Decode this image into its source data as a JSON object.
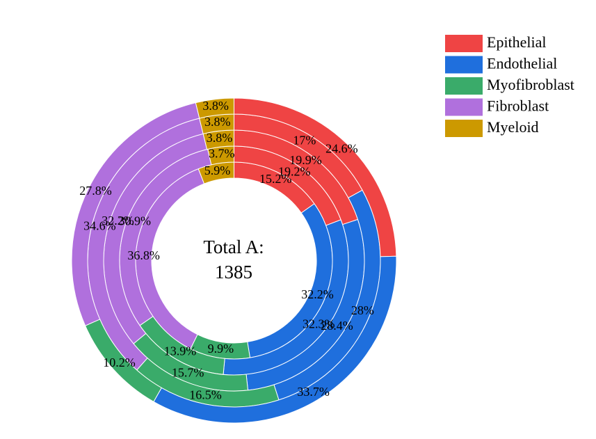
{
  "chart_data": {
    "type": "donut",
    "categories": [
      "Epithelial",
      "Endothelial",
      "Myofibroblast",
      "Fibroblast",
      "Myeloid"
    ],
    "colors": [
      "#ef4444",
      "#1f6fdd",
      "#3aab6a",
      "#b070dd",
      "#cc9900"
    ],
    "center_title": "Total A:",
    "center_value": 1385,
    "rings": [
      {
        "values": [
          15.2,
          32.2,
          9.9,
          36.8,
          5.9
        ],
        "value_labels": [
          "15.2%",
          "32.2%",
          "9.9%",
          "36.8%",
          "5.9%"
        ]
      },
      {
        "values": [
          19.2,
          32.3,
          13.9,
          30.9,
          3.7
        ],
        "value_labels": [
          "19.2%",
          "32.3%",
          "13.9%",
          "30.9%",
          "3.7%"
        ]
      },
      {
        "values": [
          19.9,
          28.4,
          15.7,
          32.2,
          3.8
        ],
        "value_labels": [
          "19.9%",
          "28.4%",
          "15.7%",
          "32.2%",
          "3.8%"
        ]
      },
      {
        "values": [
          17,
          28,
          16.5,
          34.6,
          3.8
        ],
        "value_labels": [
          "17%",
          "28%",
          "16.5%",
          "34.6%",
          "3.8%"
        ]
      },
      {
        "values": [
          24.6,
          33.7,
          10.2,
          27.8,
          3.8
        ],
        "value_labels": [
          "24.6%",
          "33.7%",
          "10.2%",
          "27.8%",
          "3.8%"
        ]
      }
    ]
  }
}
